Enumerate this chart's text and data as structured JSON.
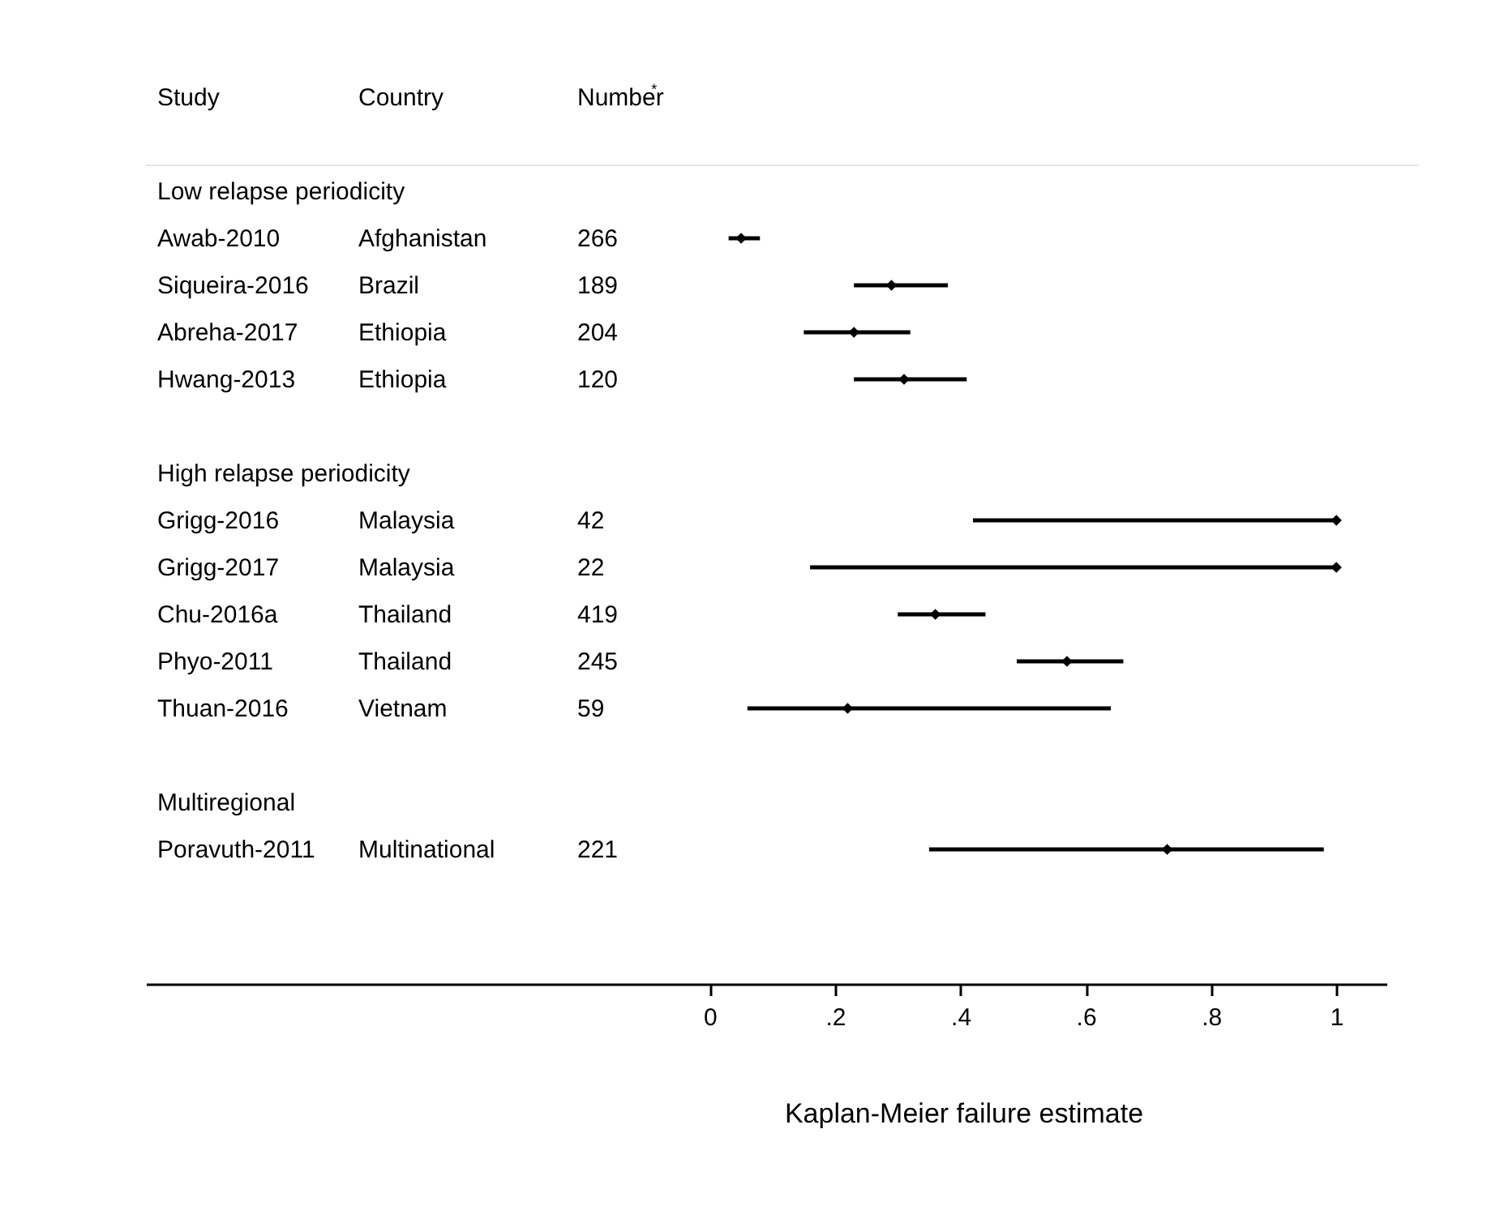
{
  "chart_data": {
    "type": "scatter",
    "orientation": "horizontal",
    "xlabel": "Kaplan-Meier failure estimate",
    "categories": [
      "Low relapse periodicity",
      "Awab-2010",
      "Siqueira-2016",
      "Abreha-2017",
      "Hwang-2013",
      null,
      "High relapse periodicity",
      "Grigg-2016",
      "Grigg-2017",
      "Chu-2016a",
      "Phyo-2011",
      "Thuan-2016",
      null,
      "Multiregional",
      "Poravuth-2011"
    ],
    "series": [
      {
        "color": "#000000",
        "values": [
          null,
          0.05,
          0.29,
          0.23,
          0.31,
          null,
          null,
          1.0,
          1.0,
          0.36,
          0.57,
          0.22,
          null,
          null,
          0.73
        ],
        "errors": [
          null,
          [
            0.03,
            0.08
          ],
          [
            0.23,
            0.38
          ],
          [
            0.15,
            0.32
          ],
          [
            0.23,
            0.41
          ],
          null,
          null,
          [
            0.42,
            1.0
          ],
          [
            0.16,
            1.0
          ],
          [
            0.3,
            0.44
          ],
          [
            0.49,
            0.66
          ],
          [
            0.06,
            0.64
          ],
          null,
          null,
          [
            0.35,
            0.98
          ]
        ]
      }
    ],
    "xlim": [
      -0.9,
      1.08
    ],
    "xticks": [
      0,
      {
        "value": 0.2,
        "label": ".2"
      },
      {
        "value": 0.4,
        "label": ".4"
      },
      {
        "value": 0.6,
        "label": ".6"
      },
      {
        "value": 0.8,
        "label": ".8"
      },
      1
    ],
    "marker": "diamond",
    "grid": false,
    "annotations": [
      "Study",
      "Country",
      "Number$^{*}$",
      "Afghanistan",
      "266",
      "Brazil",
      "189",
      "Ethiopia",
      "204",
      "Ethiopia",
      "120",
      "Malaysia",
      "42",
      "Malaysia",
      "22",
      "Thailand",
      "419",
      "Thailand",
      "245",
      "Vietnam",
      "59",
      "Multinational",
      "221"
    ]
  }
}
